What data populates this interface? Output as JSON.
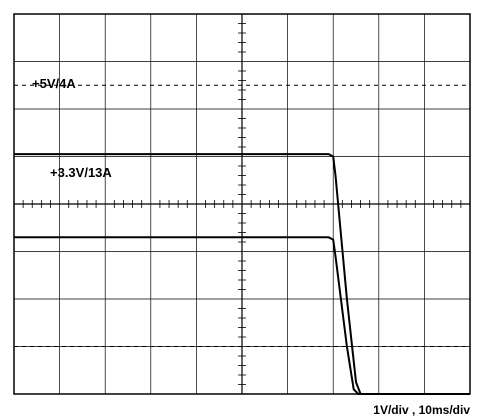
{
  "chart_data": {
    "type": "line",
    "x_unit": "ms",
    "y_unit": "V",
    "xlim": [
      0,
      100
    ],
    "ylim": [
      0,
      8
    ],
    "grid": true,
    "divisions": {
      "x": 10,
      "y": 8
    },
    "scale_label": "1V/div , 10ms/div",
    "markers": [
      {
        "label": "+5V/4A",
        "y": 6.5
      },
      {
        "label": "+3.3V/13A",
        "y": 1.0
      }
    ],
    "series": [
      {
        "name": "+5V/4A",
        "x": [
          0,
          69,
          70,
          70.5,
          73,
          75,
          76,
          100
        ],
        "y": [
          5.05,
          5.05,
          5.0,
          4.6,
          2.0,
          0.25,
          0.0,
          0.0
        ]
      },
      {
        "name": "+3.3V/13A",
        "x": [
          0,
          69,
          70,
          70.5,
          73,
          74.5,
          75.5,
          100
        ],
        "y": [
          3.3,
          3.3,
          3.25,
          2.9,
          1.0,
          0.1,
          0.0,
          0.0
        ]
      }
    ]
  }
}
